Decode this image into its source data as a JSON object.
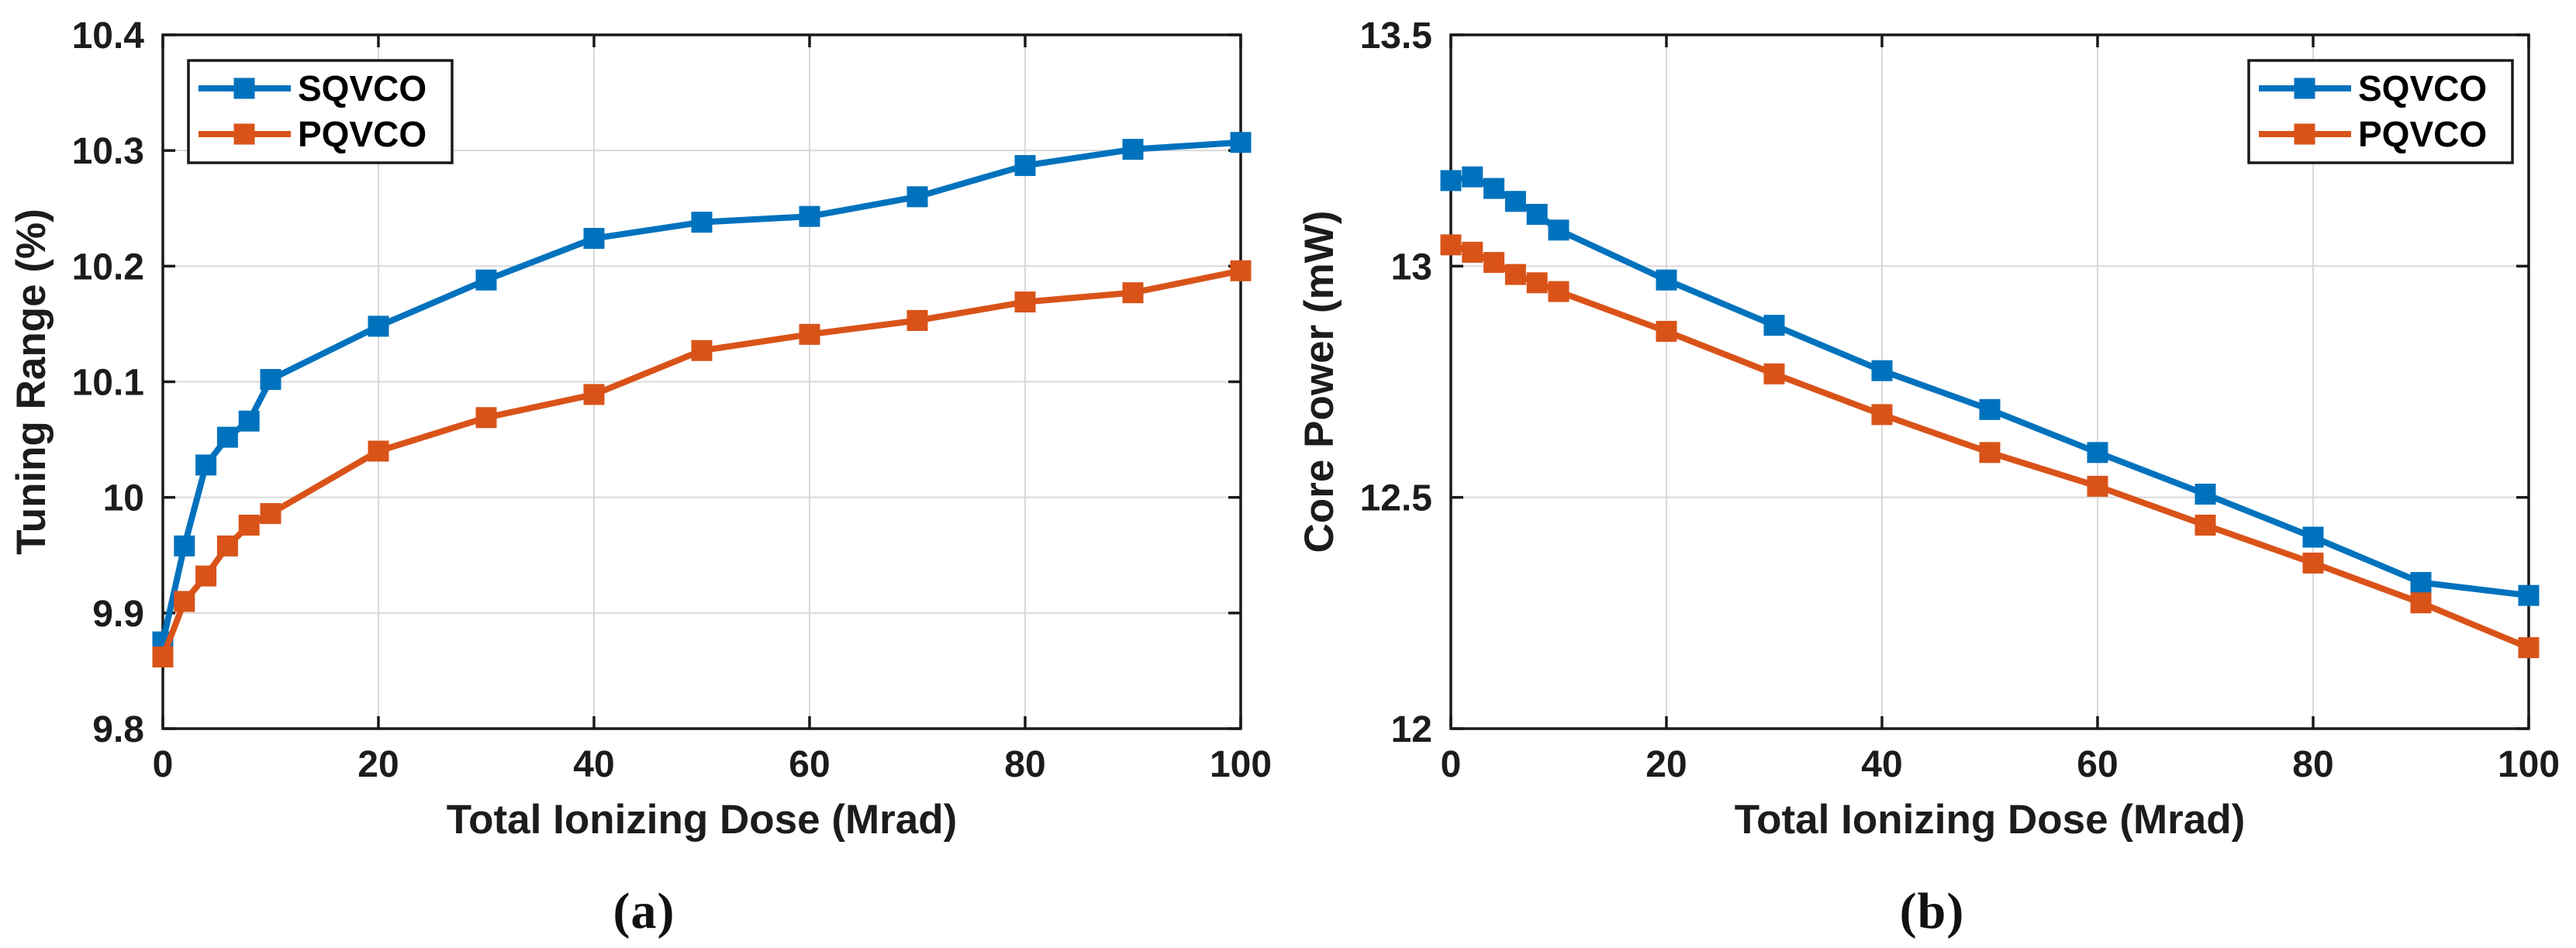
{
  "page": {
    "background": "#ffffff",
    "description": "Two-panel line chart figure comparing SQVCO and PQVCO versus total ionizing dose"
  },
  "styles": {
    "axis_color": "#1a1a1a",
    "grid_color": "#d9d9d9",
    "text_color": "#1c1c1c",
    "legend_background": "#ffffff",
    "series_blue": "#0072BD",
    "series_orange": "#D95319"
  },
  "chart_data": [
    {
      "id": "a",
      "type": "line",
      "caption": "(a)",
      "xlabel": "Total Ionizing Dose (Mrad)",
      "ylabel": "Tuning Range (%)",
      "xlim": [
        0,
        100
      ],
      "ylim": [
        9.8,
        10.4
      ],
      "grid": true,
      "legend_position": "top-left",
      "x_ticks": {
        "values": [
          0,
          20,
          40,
          60,
          80,
          100
        ],
        "labels": [
          "0",
          "20",
          "40",
          "60",
          "80",
          "100"
        ]
      },
      "y_ticks": {
        "values": [
          9.8,
          9.9,
          10,
          10.1,
          10.2,
          10.3,
          10.4
        ],
        "labels": [
          "9.8",
          "9.9",
          "10",
          "10.1",
          "10.2",
          "10.3",
          "10.4"
        ]
      },
      "x": [
        0,
        2,
        4,
        6,
        8,
        10,
        20,
        30,
        40,
        50,
        60,
        70,
        80,
        90,
        100
      ],
      "series": [
        {
          "name": "SQVCO",
          "color": "#0072BD",
          "marker": "square",
          "values": [
            9.875,
            9.958,
            10.028,
            10.052,
            10.066,
            10.102,
            10.148,
            10.188,
            10.224,
            10.238,
            10.243,
            10.26,
            10.287,
            10.301,
            10.307
          ]
        },
        {
          "name": "PQVCO",
          "color": "#D95319",
          "marker": "square",
          "values": [
            9.862,
            9.91,
            9.932,
            9.958,
            9.976,
            9.986,
            10.04,
            10.069,
            10.089,
            10.127,
            10.141,
            10.153,
            10.169,
            10.177,
            10.196
          ]
        }
      ]
    },
    {
      "id": "b",
      "type": "line",
      "caption": "(b)",
      "xlabel": "Total Ionizing Dose (Mrad)",
      "ylabel": "Core Power (mW)",
      "xlim": [
        0,
        100
      ],
      "ylim": [
        12,
        13.5
      ],
      "grid": true,
      "legend_position": "top-right",
      "x_ticks": {
        "values": [
          0,
          20,
          40,
          60,
          80,
          100
        ],
        "labels": [
          "0",
          "20",
          "40",
          "60",
          "80",
          "100"
        ]
      },
      "y_ticks": {
        "values": [
          12,
          12.5,
          13,
          13.5
        ],
        "labels": [
          "12",
          "12.5",
          "13",
          "13.5"
        ]
      },
      "x": [
        0,
        2,
        4,
        6,
        8,
        10,
        20,
        30,
        40,
        50,
        60,
        70,
        80,
        90,
        100
      ],
      "series": [
        {
          "name": "SQVCO",
          "color": "#0072BD",
          "marker": "square",
          "values": [
            13.185,
            13.193,
            13.168,
            13.14,
            13.112,
            13.078,
            12.97,
            12.872,
            12.774,
            12.69,
            12.597,
            12.507,
            12.414,
            12.316,
            12.288
          ]
        },
        {
          "name": "PQVCO",
          "color": "#D95319",
          "marker": "square",
          "values": [
            13.046,
            13.03,
            13.008,
            12.982,
            12.964,
            12.945,
            12.859,
            12.767,
            12.679,
            12.597,
            12.524,
            12.44,
            12.358,
            12.272,
            12.175
          ]
        }
      ]
    }
  ]
}
